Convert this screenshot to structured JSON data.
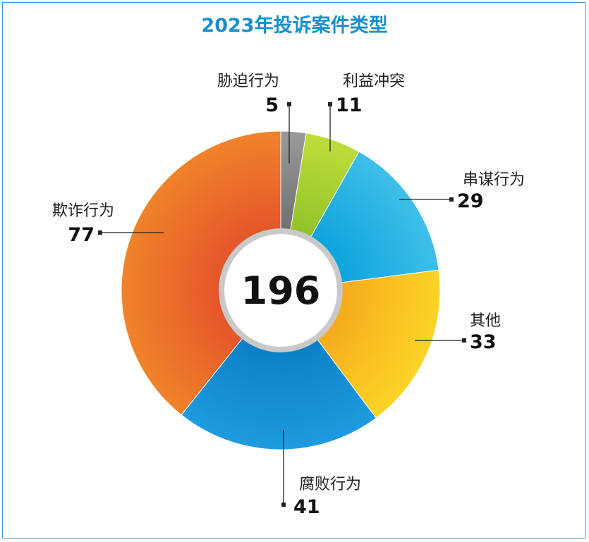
{
  "chart_data": {
    "type": "pie",
    "variant": "donut",
    "title": "2023年投诉案件类型",
    "total": "196",
    "slices": [
      {
        "label": "胁迫行为",
        "value": 5,
        "color": "#9a9a9a",
        "color2": "#6e6e6e"
      },
      {
        "label": "利益冲突",
        "value": 11,
        "color": "#bedd3a",
        "color2": "#8fc12a"
      },
      {
        "label": "串谋行为",
        "value": 29,
        "color": "#3fbfe8",
        "color2": "#0aa2dc"
      },
      {
        "label": "其他",
        "value": 33,
        "color": "#fdd427",
        "color2": "#f5a91c"
      },
      {
        "label": "腐败行为",
        "value": 41,
        "color": "#1e9be0",
        "color2": "#0a7ec4"
      },
      {
        "label": "欺诈行为",
        "value": 77,
        "color": "#f0832a",
        "color2": "#e4532a"
      }
    ],
    "legend": "none"
  },
  "frame": {
    "border_color": "#3f8fd0"
  }
}
